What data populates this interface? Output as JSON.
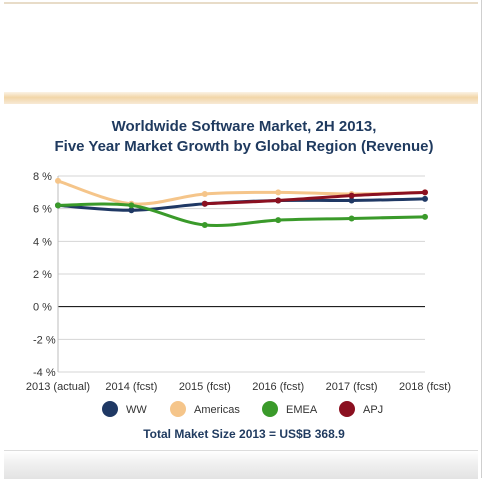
{
  "chart_data": {
    "type": "line",
    "title": [
      "Worldwide Software Market, 2H 2013,",
      "Five Year Market Growth by Global Region (Revenue)"
    ],
    "categories": [
      "2013 (actual)",
      "2014 (fcst)",
      "2015 (fcst)",
      "2016 (fcst)",
      "2017 (fcst)",
      "2018 (fcst)"
    ],
    "yticks": [
      "8 %",
      "6 %",
      "4 %",
      "2 %",
      "0 %",
      "-2 %",
      "-4 %"
    ],
    "ylim": [
      -4,
      8
    ],
    "grid": true,
    "legend_position": "bottom",
    "series": [
      {
        "name": "WW",
        "color": "#1f3864",
        "values": [
          6.2,
          5.9,
          6.3,
          6.5,
          6.5,
          6.6
        ]
      },
      {
        "name": "Americas",
        "color": "#f5c58a",
        "values": [
          7.7,
          6.3,
          6.9,
          7.0,
          6.9,
          7.0
        ]
      },
      {
        "name": "EMEA",
        "color": "#3a9a2a",
        "values": [
          6.2,
          6.2,
          5.0,
          5.3,
          5.4,
          5.5
        ]
      },
      {
        "name": "APJ",
        "color": "#8b1020",
        "values": [
          null,
          null,
          6.3,
          6.5,
          6.8,
          7.0
        ]
      }
    ],
    "footnote": "Total Maket Size 2013 = US$B 368.9"
  }
}
